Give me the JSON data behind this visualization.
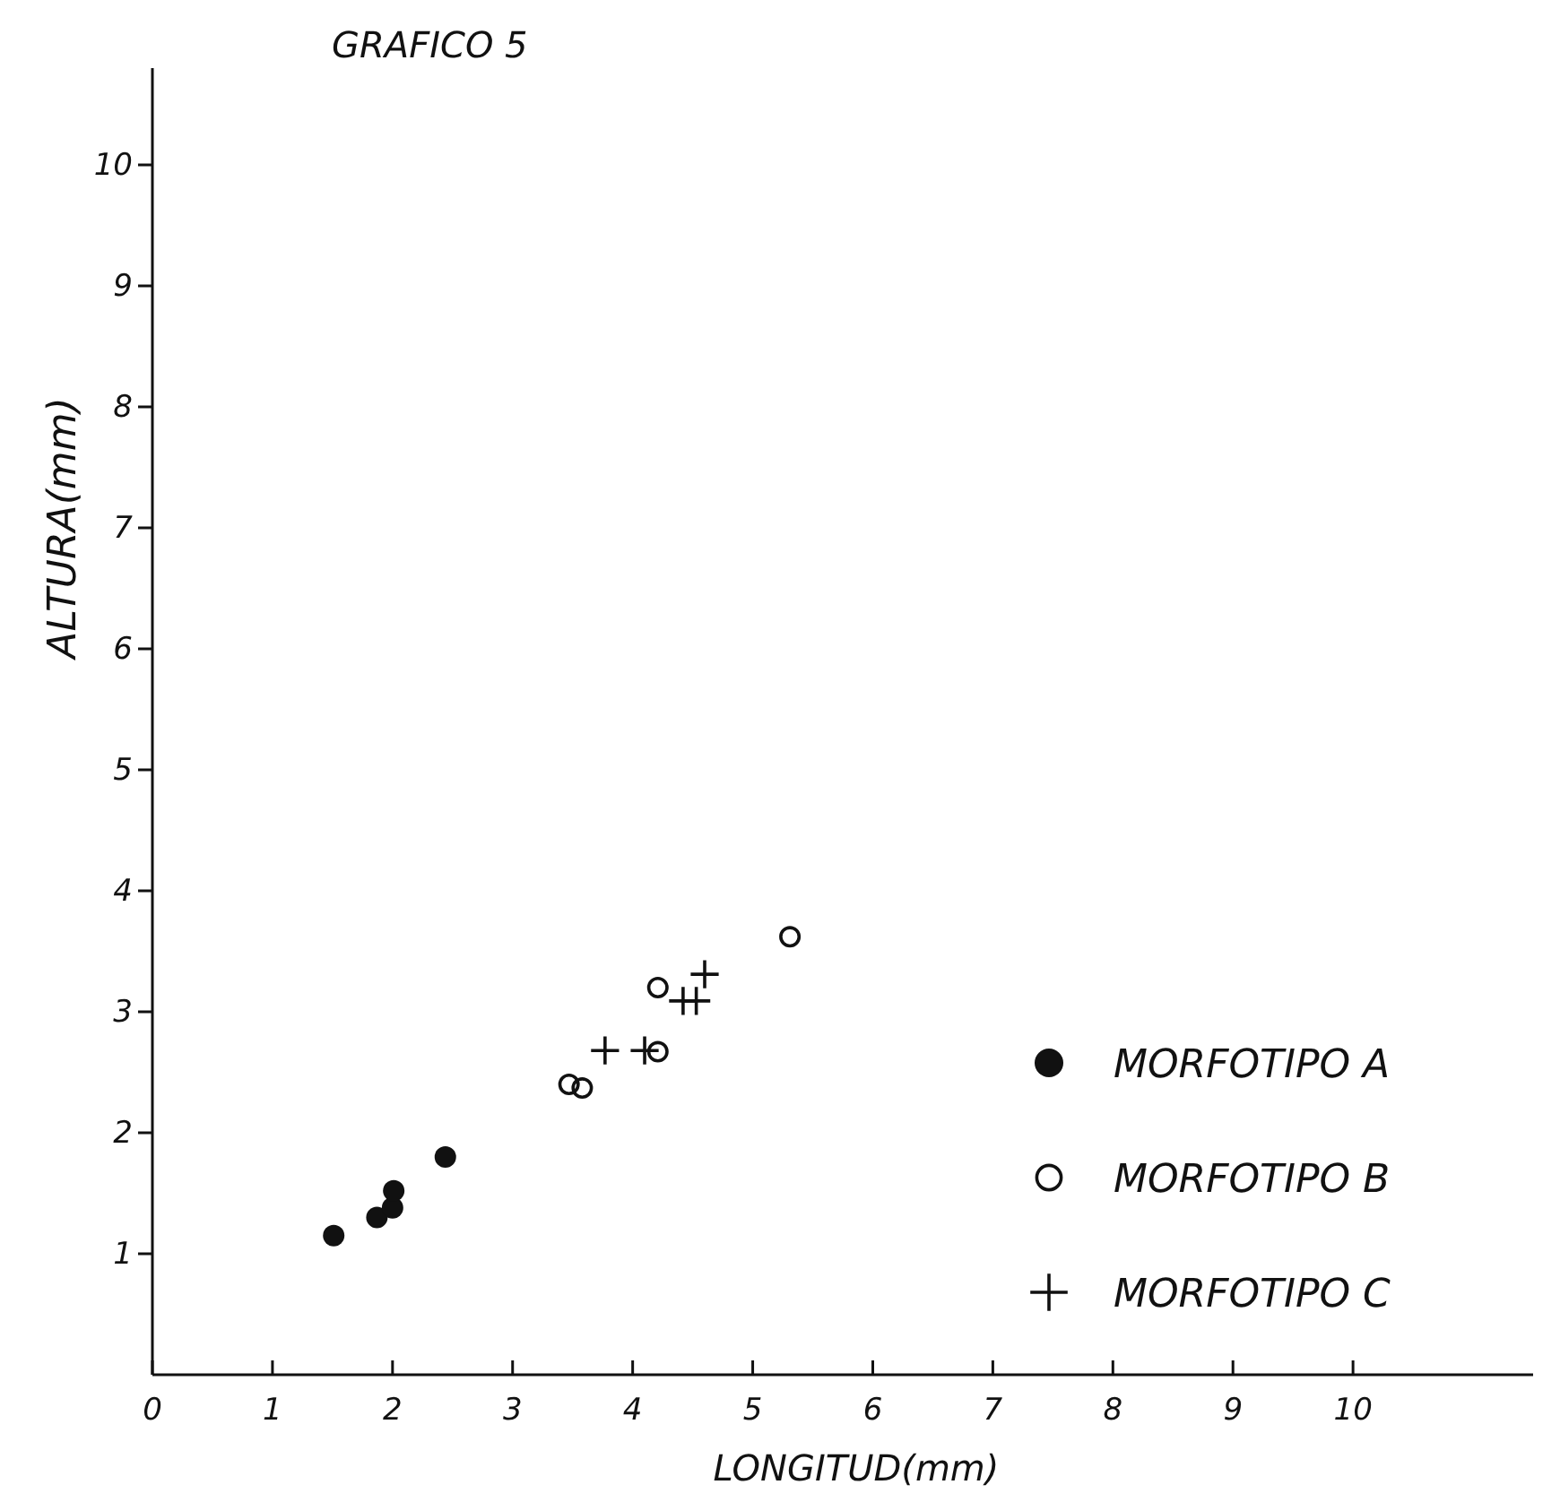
{
  "chart_data": {
    "type": "scatter",
    "title": "GRAFICO 5",
    "xlabel": "LONGITUD(mm)",
    "ylabel": "ALTURA(mm)",
    "xlim": [
      0,
      11.5
    ],
    "ylim": [
      0,
      10.8
    ],
    "xticks": [
      0,
      1,
      2,
      3,
      4,
      5,
      6,
      7,
      8,
      9,
      10
    ],
    "yticks": [
      1,
      2,
      3,
      4,
      5,
      6,
      7,
      8,
      9,
      10
    ],
    "legend": "bottom right",
    "grid": false,
    "series": [
      {
        "name": "MORFOTIPO A",
        "color": "#111111",
        "marker": "circle",
        "x": [
          1.51,
          1.87,
          2.0,
          2.01,
          2.44
        ],
        "values": [
          1.15,
          1.3,
          1.38,
          1.52,
          1.8
        ]
      },
      {
        "name": "MORFOTIPO B",
        "color": "#111111",
        "marker": "open-circle",
        "x": [
          3.47,
          3.58,
          4.21,
          4.21,
          5.31
        ],
        "values": [
          2.4,
          2.37,
          2.67,
          3.2,
          3.62
        ]
      },
      {
        "name": "MORFOTIPO C",
        "color": "#111111",
        "marker": "cross",
        "x": [
          3.77,
          4.1,
          4.42,
          4.53,
          4.6
        ],
        "values": [
          2.68,
          2.68,
          3.09,
          3.09,
          3.31
        ]
      }
    ]
  }
}
